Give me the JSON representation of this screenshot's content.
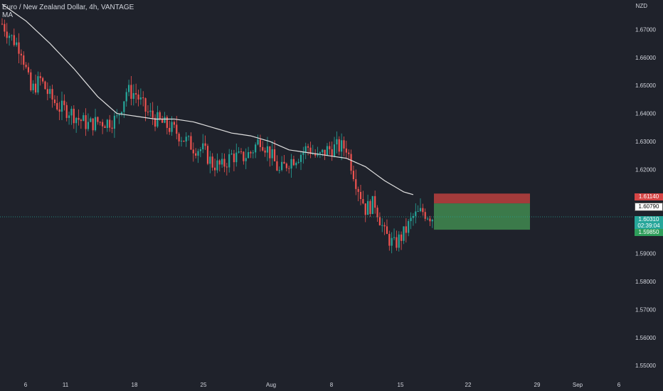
{
  "title": {
    "text": "Euro / New Zealand Dollar, 4h, VANTAGE",
    "indicator": "MA"
  },
  "currency": "NZD",
  "colors": {
    "background": "#1f222b",
    "up": "#26a69a",
    "down": "#ef5350",
    "ma": "#e0e0e0",
    "stop_zone": "#a33b3b",
    "target_zone": "#3b7a4a",
    "price_line": "#26a69a"
  },
  "tags": {
    "stop": "1.61140",
    "entry": "1.60790",
    "current": "1.60310",
    "countdown": "02:39:04",
    "target": "1.59850"
  },
  "chart_data": {
    "type": "candlestick",
    "title": "Euro / New Zealand Dollar, 4h, VANTAGE",
    "ylim": [
      1.5465,
      1.6805
    ],
    "y_ticks": [
      1.55,
      1.56,
      1.57,
      1.58,
      1.59,
      1.6,
      1.61,
      1.62,
      1.63,
      1.64,
      1.65,
      1.66,
      1.67
    ],
    "y_tick_labels": [
      "1.55000",
      "1.56000",
      "1.57000",
      "1.58000",
      "1.59000",
      "1.60000",
      "1.61000",
      "1.62000",
      "1.63000",
      "1.64000",
      "1.65000",
      "1.66000",
      "1.67000"
    ],
    "x_tick_labels": [
      "6",
      "11",
      "18",
      "25",
      "Aug",
      "8",
      "15",
      "22",
      "29",
      "Sep",
      "6"
    ],
    "close_path": [
      [
        0,
        1.672
      ],
      [
        4,
        1.667
      ],
      [
        8,
        1.663
      ],
      [
        12,
        1.648
      ],
      [
        16,
        1.652
      ],
      [
        20,
        1.646
      ],
      [
        24,
        1.642
      ],
      [
        28,
        1.641
      ],
      [
        32,
        1.638
      ],
      [
        36,
        1.636
      ],
      [
        40,
        1.637
      ],
      [
        44,
        1.637
      ],
      [
        48,
        1.638
      ],
      [
        52,
        1.648
      ],
      [
        56,
        1.647
      ],
      [
        60,
        1.641
      ],
      [
        64,
        1.638
      ],
      [
        68,
        1.636
      ],
      [
        72,
        1.634
      ],
      [
        76,
        1.631
      ],
      [
        80,
        1.628
      ],
      [
        84,
        1.627
      ],
      [
        88,
        1.622
      ],
      [
        92,
        1.621
      ],
      [
        96,
        1.625
      ],
      [
        100,
        1.624
      ],
      [
        104,
        1.626
      ],
      [
        108,
        1.631
      ],
      [
        112,
        1.626
      ],
      [
        116,
        1.619
      ],
      [
        120,
        1.623
      ],
      [
        124,
        1.625
      ],
      [
        128,
        1.628
      ],
      [
        132,
        1.624
      ],
      [
        136,
        1.627
      ],
      [
        140,
        1.628
      ],
      [
        144,
        1.628
      ],
      [
        148,
        1.616
      ],
      [
        152,
        1.606
      ],
      [
        156,
        1.608
      ],
      [
        160,
        1.597
      ],
      [
        164,
        1.593
      ],
      [
        168,
        1.597
      ],
      [
        172,
        1.603
      ],
      [
        176,
        1.605
      ],
      [
        180,
        1.603
      ]
    ],
    "ma_path": [
      [
        0,
        1.679
      ],
      [
        10,
        1.673
      ],
      [
        20,
        1.665
      ],
      [
        30,
        1.656
      ],
      [
        40,
        1.646
      ],
      [
        48,
        1.64
      ],
      [
        56,
        1.639
      ],
      [
        64,
        1.638
      ],
      [
        72,
        1.638
      ],
      [
        80,
        1.637
      ],
      [
        88,
        1.635
      ],
      [
        96,
        1.633
      ],
      [
        104,
        1.632
      ],
      [
        112,
        1.63
      ],
      [
        120,
        1.627
      ],
      [
        128,
        1.626
      ],
      [
        136,
        1.625
      ],
      [
        144,
        1.624
      ],
      [
        152,
        1.621
      ],
      [
        160,
        1.616
      ],
      [
        168,
        1.612
      ],
      [
        172,
        1.611
      ]
    ],
    "moving_average": "MA",
    "position": {
      "stop": 1.6114,
      "entry": 1.6079,
      "target": 1.5985,
      "current": 1.6031
    },
    "grid": false,
    "legend": "top-left"
  }
}
